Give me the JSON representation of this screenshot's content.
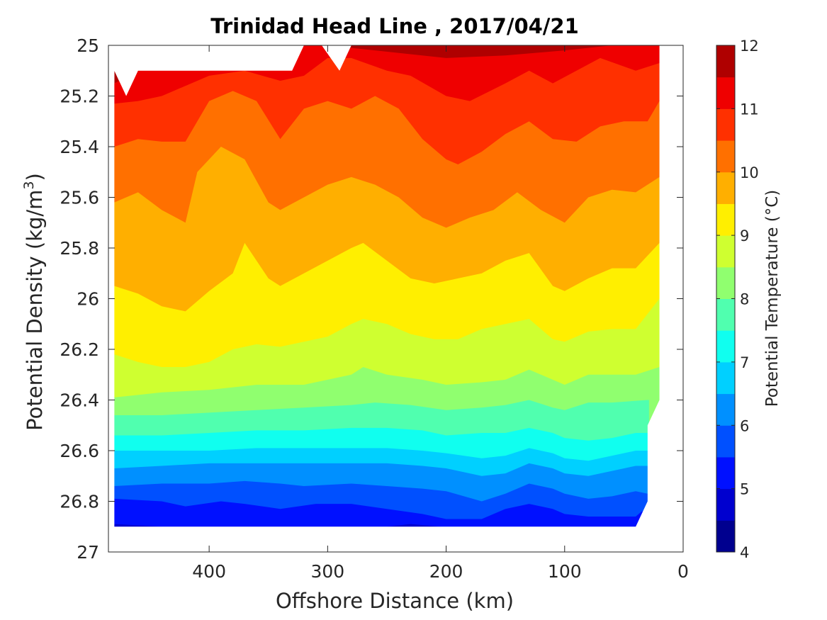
{
  "chart_data": {
    "type": "contour",
    "title": "Trinidad Head Line , 2017/04/21",
    "xlabel": "Offshore Distance (km)",
    "ylabel_main": "Potential Density (kg/m",
    "ylabel_sup": "3",
    "ylabel_close": ")",
    "colorbar_label": "Potential Temperature (°C)",
    "x_axis": {
      "min": 0,
      "max": 485,
      "reversed": true,
      "ticks": [
        400,
        300,
        200,
        100,
        0
      ],
      "tick_labels": [
        "400",
        "300",
        "200",
        "100",
        "0"
      ]
    },
    "y_axis": {
      "min": 25,
      "max": 27,
      "reversed": true,
      "ticks": [
        25,
        25.2,
        25.4,
        25.6,
        25.8,
        26,
        26.2,
        26.4,
        26.6,
        26.8,
        27
      ],
      "tick_labels": [
        "25",
        "25.2",
        "25.4",
        "25.6",
        "25.8",
        "26",
        "26.2",
        "26.4",
        "26.6",
        "26.8",
        "27"
      ]
    },
    "colorbar": {
      "min": 4,
      "max": 12,
      "ticks": [
        4,
        5,
        6,
        7,
        8,
        9,
        10,
        11,
        12
      ],
      "tick_labels": [
        "4",
        "5",
        "6",
        "7",
        "8",
        "9",
        "10",
        "11",
        "12"
      ]
    },
    "levels": [
      4,
      4.5,
      5,
      5.5,
      6,
      6.5,
      7,
      7.5,
      8,
      8.5,
      9,
      9.5,
      10,
      10.5,
      11,
      11.5,
      12
    ],
    "level_colors": [
      "#00008f",
      "#0000cf",
      "#0010ff",
      "#0050ff",
      "#0090ff",
      "#00d0ff",
      "#10ffef",
      "#50ffaf",
      "#90ff6f",
      "#cfff30",
      "#ffef00",
      "#ffaf00",
      "#ff7000",
      "#ff3000",
      "#ef0000",
      "#af0000"
    ],
    "data_extent": {
      "top": [
        [
          480,
          25.1
        ],
        [
          470,
          25.2
        ],
        [
          460,
          25.1
        ],
        [
          420,
          25.1
        ],
        [
          380,
          25.1
        ],
        [
          330,
          25.1
        ],
        [
          320,
          25.0
        ],
        [
          305,
          25.0
        ],
        [
          290,
          25.1
        ],
        [
          280,
          25.0
        ],
        [
          20,
          25.0
        ]
      ],
      "right": [
        [
          20,
          25.0
        ],
        [
          20,
          26.4
        ],
        [
          30,
          26.5
        ],
        [
          30,
          26.8
        ],
        [
          40,
          26.9
        ]
      ],
      "bottom_y": 26.9,
      "left_x": 480
    },
    "isolines": [
      {
        "level": 11.5,
        "points": [
          [
            480,
            25.15
          ],
          [
            460,
            25.1
          ],
          [
            440,
            25.1
          ],
          [
            400,
            25.1
          ],
          [
            320,
            25.0
          ],
          [
            300,
            25.0
          ],
          [
            200,
            25.05
          ],
          [
            150,
            25.04
          ],
          [
            100,
            25.02
          ],
          [
            60,
            25.0
          ],
          [
            20,
            25.0
          ]
        ]
      },
      {
        "level": 11,
        "points": [
          [
            480,
            25.23
          ],
          [
            460,
            25.22
          ],
          [
            440,
            25.2
          ],
          [
            400,
            25.12
          ],
          [
            370,
            25.1
          ],
          [
            340,
            25.14
          ],
          [
            320,
            25.12
          ],
          [
            300,
            25.05
          ],
          [
            280,
            25.05
          ],
          [
            250,
            25.1
          ],
          [
            230,
            25.12
          ],
          [
            200,
            25.2
          ],
          [
            180,
            25.22
          ],
          [
            150,
            25.15
          ],
          [
            130,
            25.1
          ],
          [
            110,
            25.15
          ],
          [
            90,
            25.1
          ],
          [
            70,
            25.05
          ],
          [
            40,
            25.1
          ],
          [
            20,
            25.07
          ]
        ]
      },
      {
        "level": 10.5,
        "points": [
          [
            480,
            25.4
          ],
          [
            460,
            25.37
          ],
          [
            440,
            25.38
          ],
          [
            420,
            25.38
          ],
          [
            400,
            25.22
          ],
          [
            380,
            25.18
          ],
          [
            360,
            25.22
          ],
          [
            340,
            25.37
          ],
          [
            320,
            25.25
          ],
          [
            300,
            25.22
          ],
          [
            280,
            25.25
          ],
          [
            260,
            25.2
          ],
          [
            240,
            25.25
          ],
          [
            220,
            25.37
          ],
          [
            200,
            25.45
          ],
          [
            190,
            25.47
          ],
          [
            170,
            25.42
          ],
          [
            150,
            25.35
          ],
          [
            130,
            25.3
          ],
          [
            110,
            25.37
          ],
          [
            90,
            25.38
          ],
          [
            70,
            25.32
          ],
          [
            50,
            25.3
          ],
          [
            30,
            25.3
          ],
          [
            20,
            25.22
          ]
        ]
      },
      {
        "level": 10,
        "points": [
          [
            480,
            25.62
          ],
          [
            460,
            25.58
          ],
          [
            440,
            25.65
          ],
          [
            420,
            25.7
          ],
          [
            410,
            25.5
          ],
          [
            390,
            25.4
          ],
          [
            370,
            25.45
          ],
          [
            350,
            25.62
          ],
          [
            340,
            25.65
          ],
          [
            320,
            25.6
          ],
          [
            300,
            25.55
          ],
          [
            280,
            25.52
          ],
          [
            260,
            25.55
          ],
          [
            240,
            25.6
          ],
          [
            220,
            25.68
          ],
          [
            200,
            25.72
          ],
          [
            180,
            25.68
          ],
          [
            160,
            25.65
          ],
          [
            140,
            25.58
          ],
          [
            120,
            25.65
          ],
          [
            100,
            25.7
          ],
          [
            80,
            25.6
          ],
          [
            60,
            25.57
          ],
          [
            40,
            25.58
          ],
          [
            20,
            25.52
          ]
        ]
      },
      {
        "level": 9.5,
        "points": [
          [
            480,
            25.95
          ],
          [
            460,
            25.98
          ],
          [
            440,
            26.03
          ],
          [
            420,
            26.05
          ],
          [
            400,
            25.97
          ],
          [
            380,
            25.9
          ],
          [
            370,
            25.78
          ],
          [
            350,
            25.92
          ],
          [
            340,
            25.95
          ],
          [
            320,
            25.9
          ],
          [
            300,
            25.85
          ],
          [
            280,
            25.8
          ],
          [
            270,
            25.78
          ],
          [
            250,
            25.85
          ],
          [
            230,
            25.92
          ],
          [
            210,
            25.94
          ],
          [
            190,
            25.92
          ],
          [
            170,
            25.9
          ],
          [
            150,
            25.85
          ],
          [
            130,
            25.82
          ],
          [
            110,
            25.95
          ],
          [
            100,
            25.97
          ],
          [
            80,
            25.92
          ],
          [
            60,
            25.88
          ],
          [
            40,
            25.88
          ],
          [
            20,
            25.78
          ]
        ]
      },
      {
        "level": 9,
        "points": [
          [
            480,
            26.22
          ],
          [
            460,
            26.25
          ],
          [
            440,
            26.27
          ],
          [
            420,
            26.27
          ],
          [
            400,
            26.25
          ],
          [
            380,
            26.2
          ],
          [
            360,
            26.18
          ],
          [
            340,
            26.19
          ],
          [
            320,
            26.17
          ],
          [
            300,
            26.15
          ],
          [
            280,
            26.1
          ],
          [
            270,
            26.08
          ],
          [
            250,
            26.1
          ],
          [
            230,
            26.14
          ],
          [
            210,
            26.16
          ],
          [
            190,
            26.16
          ],
          [
            170,
            26.12
          ],
          [
            150,
            26.1
          ],
          [
            130,
            26.08
          ],
          [
            110,
            26.16
          ],
          [
            100,
            26.17
          ],
          [
            80,
            26.13
          ],
          [
            60,
            26.12
          ],
          [
            40,
            26.12
          ],
          [
            20,
            26.0
          ]
        ]
      },
      {
        "level": 8.5,
        "points": [
          [
            480,
            26.39
          ],
          [
            460,
            26.38
          ],
          [
            440,
            26.37
          ],
          [
            400,
            26.36
          ],
          [
            360,
            26.34
          ],
          [
            320,
            26.34
          ],
          [
            300,
            26.32
          ],
          [
            280,
            26.3
          ],
          [
            270,
            26.27
          ],
          [
            250,
            26.3
          ],
          [
            220,
            26.32
          ],
          [
            200,
            26.34
          ],
          [
            170,
            26.33
          ],
          [
            150,
            26.32
          ],
          [
            130,
            26.28
          ],
          [
            110,
            26.32
          ],
          [
            100,
            26.34
          ],
          [
            80,
            26.3
          ],
          [
            60,
            26.3
          ],
          [
            40,
            26.3
          ],
          [
            20,
            26.27
          ]
        ]
      },
      {
        "level": 8,
        "points": [
          [
            480,
            26.46
          ],
          [
            440,
            26.46
          ],
          [
            400,
            26.45
          ],
          [
            360,
            26.44
          ],
          [
            320,
            26.43
          ],
          [
            280,
            26.42
          ],
          [
            260,
            26.41
          ],
          [
            230,
            26.42
          ],
          [
            200,
            26.44
          ],
          [
            170,
            26.43
          ],
          [
            150,
            26.42
          ],
          [
            130,
            26.4
          ],
          [
            110,
            26.43
          ],
          [
            100,
            26.44
          ],
          [
            80,
            26.41
          ],
          [
            60,
            26.41
          ],
          [
            30,
            26.4
          ]
        ]
      },
      {
        "level": 7.5,
        "points": [
          [
            480,
            26.54
          ],
          [
            440,
            26.54
          ],
          [
            400,
            26.53
          ],
          [
            360,
            26.52
          ],
          [
            320,
            26.52
          ],
          [
            280,
            26.51
          ],
          [
            250,
            26.51
          ],
          [
            220,
            26.52
          ],
          [
            200,
            26.54
          ],
          [
            170,
            26.53
          ],
          [
            150,
            26.53
          ],
          [
            130,
            26.51
          ],
          [
            110,
            26.53
          ],
          [
            100,
            26.55
          ],
          [
            80,
            26.56
          ],
          [
            60,
            26.55
          ],
          [
            40,
            26.53
          ],
          [
            30,
            26.53
          ]
        ]
      },
      {
        "level": 7,
        "points": [
          [
            480,
            26.6
          ],
          [
            440,
            26.6
          ],
          [
            400,
            26.6
          ],
          [
            360,
            26.59
          ],
          [
            320,
            26.59
          ],
          [
            280,
            26.59
          ],
          [
            250,
            26.59
          ],
          [
            220,
            26.6
          ],
          [
            200,
            26.61
          ],
          [
            170,
            26.63
          ],
          [
            150,
            26.62
          ],
          [
            130,
            26.59
          ],
          [
            110,
            26.61
          ],
          [
            100,
            26.63
          ],
          [
            80,
            26.64
          ],
          [
            60,
            26.62
          ],
          [
            40,
            26.6
          ],
          [
            30,
            26.6
          ]
        ]
      },
      {
        "level": 6.5,
        "points": [
          [
            480,
            26.67
          ],
          [
            440,
            26.66
          ],
          [
            400,
            26.65
          ],
          [
            360,
            26.65
          ],
          [
            320,
            26.65
          ],
          [
            280,
            26.65
          ],
          [
            250,
            26.65
          ],
          [
            220,
            26.66
          ],
          [
            200,
            26.67
          ],
          [
            170,
            26.7
          ],
          [
            150,
            26.69
          ],
          [
            130,
            26.65
          ],
          [
            110,
            26.67
          ],
          [
            100,
            26.69
          ],
          [
            80,
            26.7
          ],
          [
            60,
            26.68
          ],
          [
            40,
            26.66
          ],
          [
            30,
            26.66
          ]
        ]
      },
      {
        "level": 6,
        "points": [
          [
            480,
            26.74
          ],
          [
            440,
            26.73
          ],
          [
            400,
            26.73
          ],
          [
            370,
            26.72
          ],
          [
            340,
            26.73
          ],
          [
            320,
            26.74
          ],
          [
            280,
            26.73
          ],
          [
            250,
            26.74
          ],
          [
            220,
            26.75
          ],
          [
            200,
            26.76
          ],
          [
            170,
            26.8
          ],
          [
            150,
            26.77
          ],
          [
            130,
            26.73
          ],
          [
            110,
            26.75
          ],
          [
            100,
            26.77
          ],
          [
            80,
            26.79
          ],
          [
            60,
            26.78
          ],
          [
            40,
            26.76
          ],
          [
            30,
            26.77
          ]
        ]
      },
      {
        "level": 5.5,
        "points": [
          [
            480,
            26.79
          ],
          [
            440,
            26.8
          ],
          [
            420,
            26.82
          ],
          [
            390,
            26.8
          ],
          [
            370,
            26.81
          ],
          [
            340,
            26.83
          ],
          [
            310,
            26.81
          ],
          [
            280,
            26.81
          ],
          [
            250,
            26.83
          ],
          [
            220,
            26.85
          ],
          [
            200,
            26.87
          ],
          [
            170,
            26.87
          ],
          [
            150,
            26.83
          ],
          [
            130,
            26.81
          ],
          [
            110,
            26.83
          ],
          [
            100,
            26.85
          ],
          [
            80,
            26.86
          ],
          [
            60,
            26.86
          ],
          [
            40,
            26.86
          ],
          [
            35,
            26.84
          ]
        ]
      },
      {
        "level": 5,
        "points": [
          [
            480,
            26.89
          ],
          [
            440,
            26.9
          ],
          [
            400,
            26.9
          ],
          [
            360,
            26.9
          ],
          [
            320,
            26.9
          ],
          [
            280,
            26.9
          ],
          [
            250,
            26.9
          ],
          [
            230,
            26.89
          ],
          [
            205,
            26.9
          ]
        ]
      }
    ]
  }
}
